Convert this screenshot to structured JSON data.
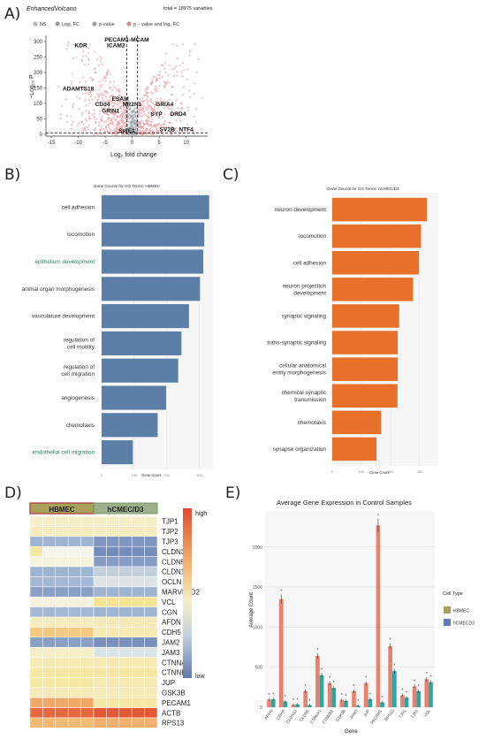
{
  "panel_letters": {
    "a": "A)",
    "b": "B)",
    "c": "C)",
    "d": "D)",
    "e": "E)"
  },
  "colors": {
    "bar_b": "#5b7fa6",
    "bar_c": "#e8702a",
    "hbmec": "#a9a15a",
    "hcmec": "#5f7fae",
    "e_bar_hbmec": "#e8826e",
    "e_bar_hcmec": "#2aa6a6",
    "volcano_points": "#e39aa0",
    "heat_high": "#e04a2c",
    "heat_low": "#5f78ae"
  },
  "chart_data": [
    {
      "id": "volcano",
      "type": "scatter",
      "title": "EnhancedVolcano",
      "subtitle_right": "total = 18975 variables",
      "legend": [
        "NS",
        "Log₂ FC",
        "p-value",
        "p − value and log₂ FC"
      ],
      "xlabel": "Log₂ fold change",
      "ylabel": "−Log₁₀ P",
      "xlim": [
        -16,
        14
      ],
      "ylim": [
        0,
        320
      ],
      "xticks": [
        "-15",
        "-10",
        "-5",
        "0",
        "5",
        "10"
      ],
      "yticks": [
        "0",
        "50",
        "100",
        "150",
        "200",
        "250",
        "300"
      ],
      "labels": [
        {
          "text": "PECAM1-MCAM",
          "x": -1,
          "y": 300
        },
        {
          "text": "KDR",
          "x": -9.5,
          "y": 282
        },
        {
          "text": "ICAM2",
          "x": -3,
          "y": 282
        },
        {
          "text": "ADAMTS18",
          "x": -10,
          "y": 142
        },
        {
          "text": "ESAM",
          "x": -2.2,
          "y": 108
        },
        {
          "text": "CD34",
          "x": -5.5,
          "y": 92
        },
        {
          "text": "NR2N1",
          "x": 0,
          "y": 92
        },
        {
          "text": "GRIA4",
          "x": 6,
          "y": 92
        },
        {
          "text": "GRIN1",
          "x": -4,
          "y": 70
        },
        {
          "text": "SYP",
          "x": 4.5,
          "y": 60
        },
        {
          "text": "DRD4",
          "x": 8.5,
          "y": 60
        },
        {
          "text": "SV2B",
          "x": 6.5,
          "y": 10
        },
        {
          "text": "NTF4",
          "x": 10,
          "y": 10
        },
        {
          "text": "SWE1",
          "x": -1,
          "y": 6
        }
      ]
    },
    {
      "id": "go_hbmec",
      "type": "bar",
      "title": "Gene Counts for GO Terms: HBMEC",
      "xlabel": "Gene Count",
      "xticks": [
        "0",
        "100",
        "200",
        "300"
      ],
      "xlim": [
        0,
        320
      ],
      "categories": [
        "cell adhesion",
        "locomotion",
        "epithelium development",
        "animal organ morphogenesis",
        "vasculature development",
        "regulation of cell motility",
        "regulation of cell migration",
        "angiogenesis",
        "chemotaxis",
        "endothelial cell migration"
      ],
      "values": [
        330,
        315,
        312,
        302,
        268,
        245,
        235,
        198,
        172,
        96
      ]
    },
    {
      "id": "go_hcmec",
      "type": "bar",
      "title": "Gene Counts for GO Terms: hCMEC/D3",
      "xlabel": "Gene Count",
      "xticks": [
        "0",
        "100",
        "200",
        "300"
      ],
      "xlim": [
        0,
        340
      ],
      "categories": [
        "neuron development",
        "locomotion",
        "cell adhesion",
        "neuron projection development",
        "synaptic signaling",
        "trans-synaptic signaling",
        "cellular anatomical entity morphogenesis",
        "chemical synaptic transmission",
        "chemotaxis",
        "synapse organization"
      ],
      "values": [
        325,
        305,
        298,
        278,
        230,
        225,
        225,
        224,
        168,
        152
      ]
    },
    {
      "id": "heatmap",
      "type": "heatmap",
      "groups": [
        "HBMEC",
        "hCMEC/D3"
      ],
      "columns_per_group": 5,
      "legend_high": "high",
      "legend_low": "low",
      "rows": [
        "TJP1",
        "TJP2",
        "TJP3",
        "CLDN3",
        "CLDN5",
        "CLDN12",
        "OCLN",
        "MARVELD2",
        "VCL",
        "CGN",
        "AFDN",
        "CDH5",
        "JAM2",
        "JAM3",
        "CTNNA1",
        "CTNNB1",
        "JUP",
        "GSK3B",
        "PECAM1",
        "ACTB",
        "RPS13"
      ],
      "values": [
        [
          0.55,
          0.55,
          0.55,
          0.55,
          0.55,
          0.55,
          0.55,
          0.55,
          0.55,
          0.55
        ],
        [
          0.56,
          0.56,
          0.56,
          0.56,
          0.56,
          0.56,
          0.56,
          0.56,
          0.56,
          0.56
        ],
        [
          0.3,
          0.3,
          0.3,
          0.3,
          0.3,
          0.15,
          0.15,
          0.15,
          0.15,
          0.15
        ],
        [
          0.6,
          0.5,
          0.5,
          0.5,
          0.5,
          0.1,
          0.1,
          0.1,
          0.1,
          0.1
        ],
        [
          0.52,
          0.52,
          0.52,
          0.52,
          0.52,
          0.18,
          0.18,
          0.18,
          0.18,
          0.18
        ],
        [
          0.3,
          0.3,
          0.3,
          0.3,
          0.3,
          0.4,
          0.4,
          0.4,
          0.4,
          0.4
        ],
        [
          0.32,
          0.32,
          0.32,
          0.32,
          0.32,
          0.45,
          0.45,
          0.45,
          0.45,
          0.45
        ],
        [
          0.2,
          0.2,
          0.2,
          0.2,
          0.2,
          0.3,
          0.3,
          0.3,
          0.3,
          0.3
        ],
        [
          0.52,
          0.52,
          0.52,
          0.52,
          0.52,
          0.62,
          0.62,
          0.62,
          0.62,
          0.62
        ],
        [
          0.32,
          0.32,
          0.32,
          0.32,
          0.32,
          0.3,
          0.3,
          0.3,
          0.3,
          0.3
        ],
        [
          0.56,
          0.56,
          0.56,
          0.56,
          0.56,
          0.57,
          0.57,
          0.57,
          0.57,
          0.57
        ],
        [
          0.68,
          0.68,
          0.68,
          0.68,
          0.68,
          0.58,
          0.58,
          0.58,
          0.58,
          0.58
        ],
        [
          0.2,
          0.2,
          0.2,
          0.2,
          0.2,
          0.12,
          0.12,
          0.12,
          0.12,
          0.12
        ],
        [
          0.55,
          0.55,
          0.55,
          0.55,
          0.55,
          0.45,
          0.45,
          0.45,
          0.45,
          0.45
        ],
        [
          0.58,
          0.58,
          0.58,
          0.58,
          0.58,
          0.58,
          0.58,
          0.58,
          0.58,
          0.58
        ],
        [
          0.6,
          0.6,
          0.6,
          0.6,
          0.6,
          0.6,
          0.6,
          0.6,
          0.6,
          0.6
        ],
        [
          0.6,
          0.6,
          0.6,
          0.6,
          0.6,
          0.58,
          0.58,
          0.58,
          0.58,
          0.58
        ],
        [
          0.57,
          0.57,
          0.57,
          0.57,
          0.57,
          0.57,
          0.57,
          0.57,
          0.57,
          0.57
        ],
        [
          0.76,
          0.76,
          0.76,
          0.76,
          0.76,
          0.6,
          0.6,
          0.6,
          0.6,
          0.6
        ],
        [
          0.92,
          0.92,
          0.92,
          0.92,
          0.92,
          0.96,
          0.96,
          0.96,
          0.96,
          0.96
        ],
        [
          0.72,
          0.72,
          0.72,
          0.72,
          0.72,
          0.74,
          0.74,
          0.74,
          0.74,
          0.74
        ]
      ]
    },
    {
      "id": "expression",
      "type": "bar",
      "title": "Average Gene Expression in Control Samples",
      "xlabel": "Gene",
      "ylabel": "Average Count",
      "ylim": [
        0,
        2450
      ],
      "yticks": [
        "0",
        "500",
        "1000",
        "1500",
        "2000"
      ],
      "legend_title": "Cell Type",
      "categories": [
        "AFDN",
        "CDH5",
        "CLDN12",
        "CLDN5",
        "CTNNA1",
        "CTNNB1",
        "GSK3B",
        "JAM3",
        "JUP",
        "PECAM1",
        "RPS13",
        "TJP1",
        "TJP2",
        "VCL"
      ],
      "series": [
        {
          "name": "HBMEC",
          "values": [
            95,
            1350,
            30,
            200,
            640,
            300,
            90,
            200,
            300,
            2270,
            760,
            150,
            260,
            350
          ]
        },
        {
          "name": "hCMECD3",
          "values": [
            100,
            70,
            35,
            25,
            400,
            240,
            80,
            20,
            100,
            60,
            450,
            120,
            200,
            310
          ]
        }
      ]
    }
  ]
}
